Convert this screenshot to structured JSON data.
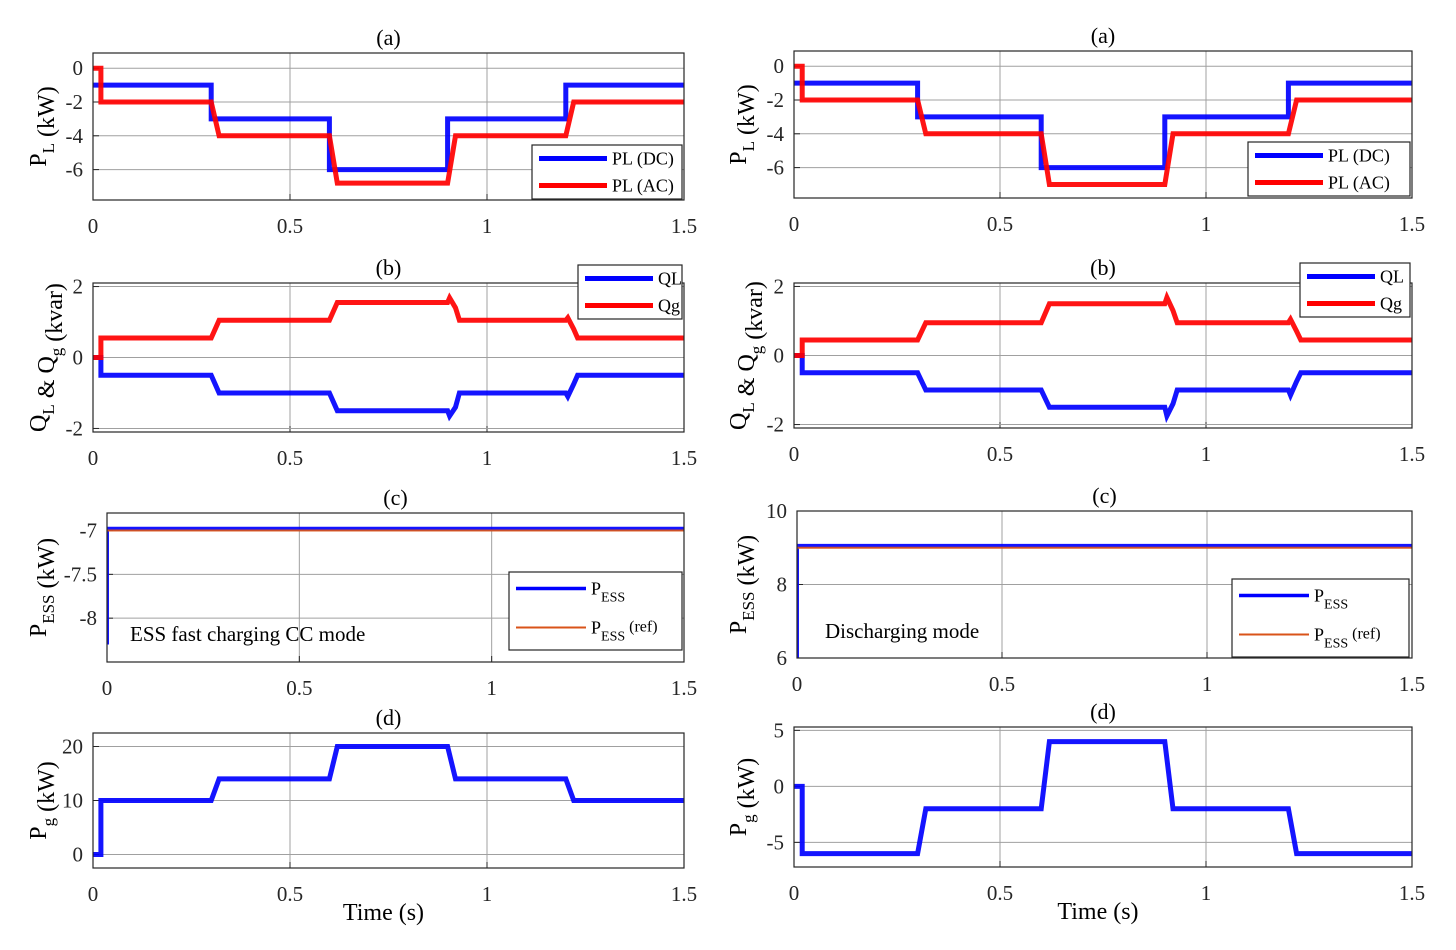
{
  "chart_data": [
    {
      "id": "left-a",
      "type": "line",
      "title": "(a)",
      "ylabel_main": "P",
      "ylabel_sub": "L",
      "ylabel_unit": " (kW)",
      "xlabel": "",
      "xlim": [
        0,
        1.5
      ],
      "ylim": [
        -7.8,
        0.9
      ],
      "xticks": [
        0,
        0.5,
        1,
        1.5
      ],
      "xticklabels": [
        "0",
        "0.5",
        "1",
        "1.5"
      ],
      "yticks": [
        0,
        -2,
        -4,
        -6
      ],
      "yticklabels": [
        "0",
        "-2",
        "-4",
        "-6"
      ],
      "grid": true,
      "legend_position": "bottom-right",
      "series": [
        {
          "name": "PL (DC)",
          "color": "#0000ff",
          "x": [
            0,
            0.3,
            0.3,
            0.6,
            0.6,
            0.9,
            0.9,
            1.2,
            1.2,
            1.5
          ],
          "y": [
            -1,
            -1,
            -3,
            -3,
            -6,
            -6,
            -3,
            -3,
            -1,
            -1
          ]
        },
        {
          "name": "PL (AC)",
          "color": "#ff0000",
          "x": [
            0,
            0.02,
            0.02,
            0.3,
            0.32,
            0.6,
            0.62,
            0.9,
            0.92,
            1.2,
            1.22,
            1.5
          ],
          "y": [
            0,
            0,
            -2,
            -2,
            -4,
            -4,
            -6.8,
            -6.8,
            -4,
            -4,
            -2,
            -2
          ]
        }
      ]
    },
    {
      "id": "right-a",
      "type": "line",
      "title": "(a)",
      "ylabel_main": "P",
      "ylabel_sub": "L",
      "ylabel_unit": " (kW)",
      "xlabel": "",
      "xlim": [
        0,
        1.5
      ],
      "ylim": [
        -7.8,
        0.9
      ],
      "xticks": [
        0,
        0.5,
        1,
        1.5
      ],
      "xticklabels": [
        "0",
        "0.5",
        "1",
        "1.5"
      ],
      "yticks": [
        0,
        -2,
        -4,
        -6
      ],
      "yticklabels": [
        "0",
        "-2",
        "-4",
        "-6"
      ],
      "grid": true,
      "legend_position": "bottom-right",
      "series": [
        {
          "name": "PL (DC)",
          "color": "#0000ff",
          "x": [
            0,
            0.3,
            0.3,
            0.6,
            0.6,
            0.9,
            0.9,
            1.2,
            1.2,
            1.5
          ],
          "y": [
            -1,
            -1,
            -3,
            -3,
            -6,
            -6,
            -3,
            -3,
            -1,
            -1
          ]
        },
        {
          "name": "PL (AC)",
          "color": "#ff0000",
          "x": [
            0,
            0.02,
            0.02,
            0.3,
            0.32,
            0.6,
            0.62,
            0.9,
            0.92,
            1.2,
            1.22,
            1.5
          ],
          "y": [
            0,
            0,
            -2,
            -2,
            -4,
            -4,
            -7,
            -7,
            -4,
            -4,
            -2,
            -2
          ]
        }
      ]
    },
    {
      "id": "left-b",
      "type": "line",
      "title": "(b)",
      "ylabel_main": "Q",
      "ylabel_sub": "L",
      "ylabel_mid": " & Q",
      "ylabel_sub2": "g",
      "ylabel_unit": " (kvar)",
      "xlabel": "",
      "xlim": [
        0,
        1.5
      ],
      "ylim": [
        -2.1,
        2.1
      ],
      "xticks": [
        0,
        0.5,
        1,
        1.5
      ],
      "xticklabels": [
        "0",
        "0.5",
        "1",
        "1.5"
      ],
      "yticks": [
        2,
        0,
        -2
      ],
      "yticklabels": [
        "2",
        "0",
        "-2"
      ],
      "grid": true,
      "legend_position": "top-right-outside",
      "series": [
        {
          "name": "QL",
          "color": "#0000ff",
          "x": [
            0,
            0.02,
            0.02,
            0.3,
            0.32,
            0.6,
            0.62,
            0.9,
            0.905,
            0.92,
            0.93,
            1.2,
            1.205,
            1.22,
            1.23,
            1.5
          ],
          "y": [
            0,
            0,
            -0.5,
            -0.5,
            -1,
            -1,
            -1.5,
            -1.5,
            -1.65,
            -1.4,
            -1,
            -1,
            -1.1,
            -0.75,
            -0.5,
            -0.5
          ]
        },
        {
          "name": "Qg",
          "color": "#ff0000",
          "x": [
            0,
            0.02,
            0.02,
            0.3,
            0.32,
            0.6,
            0.62,
            0.9,
            0.905,
            0.92,
            0.93,
            1.2,
            1.205,
            1.22,
            1.23,
            1.5
          ],
          "y": [
            0,
            0,
            0.55,
            0.55,
            1.05,
            1.05,
            1.55,
            1.55,
            1.68,
            1.4,
            1.05,
            1.05,
            1.12,
            0.8,
            0.55,
            0.55
          ]
        }
      ]
    },
    {
      "id": "right-b",
      "type": "line",
      "title": "(b)",
      "ylabel_main": "Q",
      "ylabel_sub": "L",
      "ylabel_mid": " & Q",
      "ylabel_sub2": "g",
      "ylabel_unit": " (kvar)",
      "xlabel": "",
      "xlim": [
        0,
        1.5
      ],
      "ylim": [
        -2.1,
        2.1
      ],
      "xticks": [
        0,
        0.5,
        1,
        1.5
      ],
      "xticklabels": [
        "0",
        "0.5",
        "1",
        "1.5"
      ],
      "yticks": [
        2,
        0,
        -2
      ],
      "yticklabels": [
        "2",
        "0",
        "-2"
      ],
      "grid": true,
      "legend_position": "top-right-outside",
      "series": [
        {
          "name": "QL",
          "color": "#0000ff",
          "x": [
            0,
            0.02,
            0.02,
            0.3,
            0.32,
            0.6,
            0.62,
            0.9,
            0.905,
            0.92,
            0.93,
            1.2,
            1.205,
            1.22,
            1.23,
            1.5
          ],
          "y": [
            0,
            0,
            -0.5,
            -0.5,
            -1,
            -1,
            -1.5,
            -1.5,
            -1.75,
            -1.4,
            -1,
            -1,
            -1.15,
            -0.75,
            -0.5,
            -0.5
          ]
        },
        {
          "name": "Qg",
          "color": "#ff0000",
          "x": [
            0,
            0.02,
            0.02,
            0.3,
            0.32,
            0.6,
            0.62,
            0.9,
            0.905,
            0.92,
            0.93,
            1.2,
            1.205,
            1.22,
            1.23,
            1.5
          ],
          "y": [
            0,
            0,
            0.45,
            0.45,
            0.95,
            0.95,
            1.5,
            1.5,
            1.68,
            1.3,
            0.95,
            0.95,
            1.05,
            0.7,
            0.45,
            0.45
          ]
        }
      ]
    },
    {
      "id": "left-c",
      "type": "line",
      "title": "(c)",
      "ylabel_main": "P",
      "ylabel_sub": "ESS",
      "ylabel_unit": " (kW)",
      "xlabel": "",
      "xlim": [
        0,
        1.5
      ],
      "ylim": [
        -8.5,
        -6.8
      ],
      "xticks": [
        0,
        0.5,
        1,
        1.5
      ],
      "xticklabels": [
        "0",
        "0.5",
        "1",
        "1.5"
      ],
      "yticks": [
        -7,
        -7.5,
        -8
      ],
      "yticklabels": [
        "-7",
        "-7.5",
        "-8"
      ],
      "grid": true,
      "legend_position": "bottom-right",
      "annotation": "ESS fast charging CC mode",
      "series": [
        {
          "name": "P_ESS",
          "label_main": "P",
          "label_sub": "ESS",
          "label_suffix": "",
          "color": "#0000ff",
          "x": [
            0,
            0,
            1.5
          ],
          "y": [
            -8.3,
            -6.98,
            -6.98
          ]
        },
        {
          "name": "P_ESS (ref)",
          "label_main": "P",
          "label_sub": "ESS",
          "label_suffix": " (ref)",
          "color": "#d95319",
          "x": [
            0,
            1.5
          ],
          "y": [
            -7.0,
            -7.0
          ]
        }
      ]
    },
    {
      "id": "right-c",
      "type": "line",
      "title": "(c)",
      "ylabel_main": "P",
      "ylabel_sub": "ESS",
      "ylabel_unit": " (kW)",
      "xlabel": "",
      "xlim": [
        0,
        1.5
      ],
      "ylim": [
        6,
        10
      ],
      "xticks": [
        0,
        0.5,
        1,
        1.5
      ],
      "xticklabels": [
        "0",
        "0.5",
        "1",
        "1.5"
      ],
      "yticks": [
        10,
        8,
        6
      ],
      "yticklabels": [
        "10",
        "8",
        "6"
      ],
      "grid": true,
      "legend_position": "bottom-right",
      "annotation": "Discharging mode",
      "series": [
        {
          "name": "P_ESS",
          "label_main": "P",
          "label_sub": "ESS",
          "label_suffix": "",
          "color": "#0000ff",
          "x": [
            0,
            0,
            1.5
          ],
          "y": [
            6,
            9.05,
            9.05
          ]
        },
        {
          "name": "P_ESS (ref)",
          "label_main": "P",
          "label_sub": "ESS",
          "label_suffix": " (ref)",
          "color": "#d95319",
          "x": [
            0,
            1.5
          ],
          "y": [
            9.0,
            9.0
          ]
        }
      ]
    },
    {
      "id": "left-d",
      "type": "line",
      "title": "(d)",
      "ylabel_main": "P",
      "ylabel_sub": "g",
      "ylabel_unit": " (kW)",
      "xlabel": "Time (s)",
      "xlim": [
        0,
        1.5
      ],
      "ylim": [
        -2.5,
        22.5
      ],
      "xticks": [
        0,
        0.5,
        1,
        1.5
      ],
      "xticklabels": [
        "0",
        "0.5",
        "1",
        "1.5"
      ],
      "yticks": [
        20,
        10,
        0
      ],
      "yticklabels": [
        "20",
        "10",
        "0"
      ],
      "grid": true,
      "legend_position": "none",
      "series": [
        {
          "name": "Pg",
          "color": "#0000ff",
          "x": [
            0,
            0.02,
            0.02,
            0.3,
            0.32,
            0.6,
            0.62,
            0.9,
            0.92,
            1.2,
            1.22,
            1.5
          ],
          "y": [
            0,
            0,
            10,
            10,
            14,
            14,
            20,
            20,
            14,
            14,
            10,
            10
          ]
        }
      ]
    },
    {
      "id": "right-d",
      "type": "line",
      "title": "(d)",
      "ylabel_main": "P",
      "ylabel_sub": "g",
      "ylabel_unit": " (kW)",
      "xlabel": "Time (s)",
      "xlim": [
        0,
        1.5
      ],
      "ylim": [
        -7.2,
        5.3
      ],
      "xticks": [
        0,
        0.5,
        1,
        1.5
      ],
      "xticklabels": [
        "0",
        "0.5",
        "1",
        "1.5"
      ],
      "yticks": [
        5,
        0,
        -5
      ],
      "yticklabels": [
        "5",
        "0",
        "-5"
      ],
      "grid": true,
      "legend_position": "none",
      "series": [
        {
          "name": "Pg",
          "color": "#0000ff",
          "x": [
            0,
            0.02,
            0.02,
            0.3,
            0.32,
            0.6,
            0.62,
            0.9,
            0.92,
            1.2,
            1.22,
            1.5
          ],
          "y": [
            0,
            0,
            -6,
            -6,
            -2,
            -2,
            4,
            4,
            -2,
            -2,
            -6,
            -6
          ]
        }
      ]
    }
  ]
}
